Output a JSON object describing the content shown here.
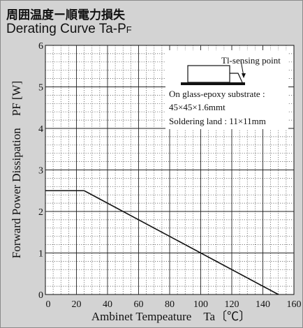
{
  "header": {
    "title_jp": "周囲温度ー順電力損失",
    "title_en_prefix": "Derating Curve ",
    "title_en_symbol": "Ta-P",
    "title_en_subscript": "F"
  },
  "chart_data": {
    "type": "line",
    "x": [
      0,
      25,
      150
    ],
    "y": [
      2.5,
      2.5,
      0
    ],
    "xlim": [
      0,
      160
    ],
    "ylim": [
      0,
      6
    ],
    "x_ticks": [
      "0",
      "20",
      "40",
      "60",
      "80",
      "100",
      "120",
      "140",
      "160"
    ],
    "y_ticks": [
      "0",
      "1",
      "2",
      "3",
      "4",
      "5",
      "6"
    ],
    "xlabel": "Ambinet Tempeature　Ta〔℃〕",
    "ylabel": "Forward Power Dissipation　PF [W]",
    "grid": true,
    "annotation": {
      "sensing_label": "Tl-sensing point",
      "lines": [
        "On glass-epoxy substrate :",
        "45×45×1.6mmt",
        "Soldering land : 11×11mm"
      ]
    },
    "colors": {
      "line": "#111111",
      "grid": "#4a4a4a",
      "plot_bg": "#ffffff",
      "panel_bg": "#d3d3d3"
    }
  }
}
